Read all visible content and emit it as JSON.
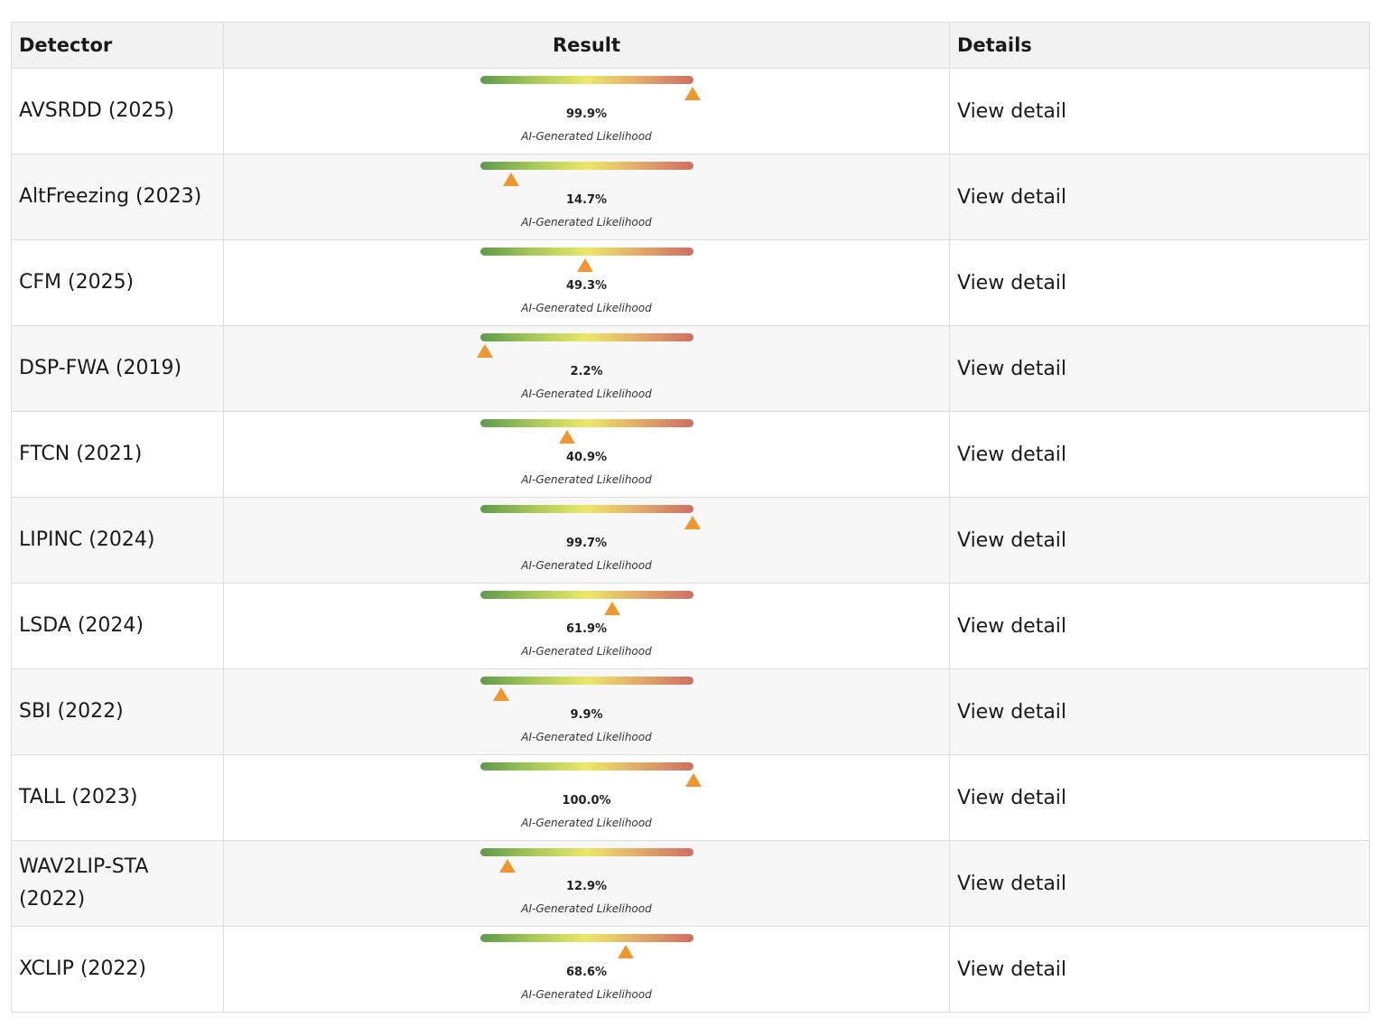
{
  "table": {
    "headers": {
      "detector": "Detector",
      "result": "Result",
      "details": "Details"
    },
    "caption": "AI-Generated Likelihood",
    "colors": {
      "marker": "#f0962e",
      "gradient_start": "#5e9a4a",
      "gradient_mid": "#ece868",
      "gradient_end": "#cf6e62"
    },
    "rows": [
      {
        "detector": "AVSRDD (2025)",
        "likelihood": 99.9,
        "likelihood_label": "99.9%",
        "details": "View detail"
      },
      {
        "detector": "AltFreezing (2023)",
        "likelihood": 14.7,
        "likelihood_label": "14.7%",
        "details": "View detail"
      },
      {
        "detector": "CFM (2025)",
        "likelihood": 49.3,
        "likelihood_label": "49.3%",
        "details": "View detail"
      },
      {
        "detector": "DSP-FWA (2019)",
        "likelihood": 2.2,
        "likelihood_label": "2.2%",
        "details": "View detail"
      },
      {
        "detector": "FTCN (2021)",
        "likelihood": 40.9,
        "likelihood_label": "40.9%",
        "details": "View detail"
      },
      {
        "detector": "LIPINC (2024)",
        "likelihood": 99.7,
        "likelihood_label": "99.7%",
        "details": "View detail"
      },
      {
        "detector": "LSDA (2024)",
        "likelihood": 61.9,
        "likelihood_label": "61.9%",
        "details": "View detail"
      },
      {
        "detector": "SBI (2022)",
        "likelihood": 9.9,
        "likelihood_label": "9.9%",
        "details": "View detail"
      },
      {
        "detector": "TALL (2023)",
        "likelihood": 100.0,
        "likelihood_label": "100.0%",
        "details": "View detail"
      },
      {
        "detector": "WAV2LIP-STA (2022)",
        "likelihood": 12.9,
        "likelihood_label": "12.9%",
        "details": "View detail"
      },
      {
        "detector": "XCLIP (2022)",
        "likelihood": 68.6,
        "likelihood_label": "68.6%",
        "details": "View detail"
      }
    ]
  }
}
